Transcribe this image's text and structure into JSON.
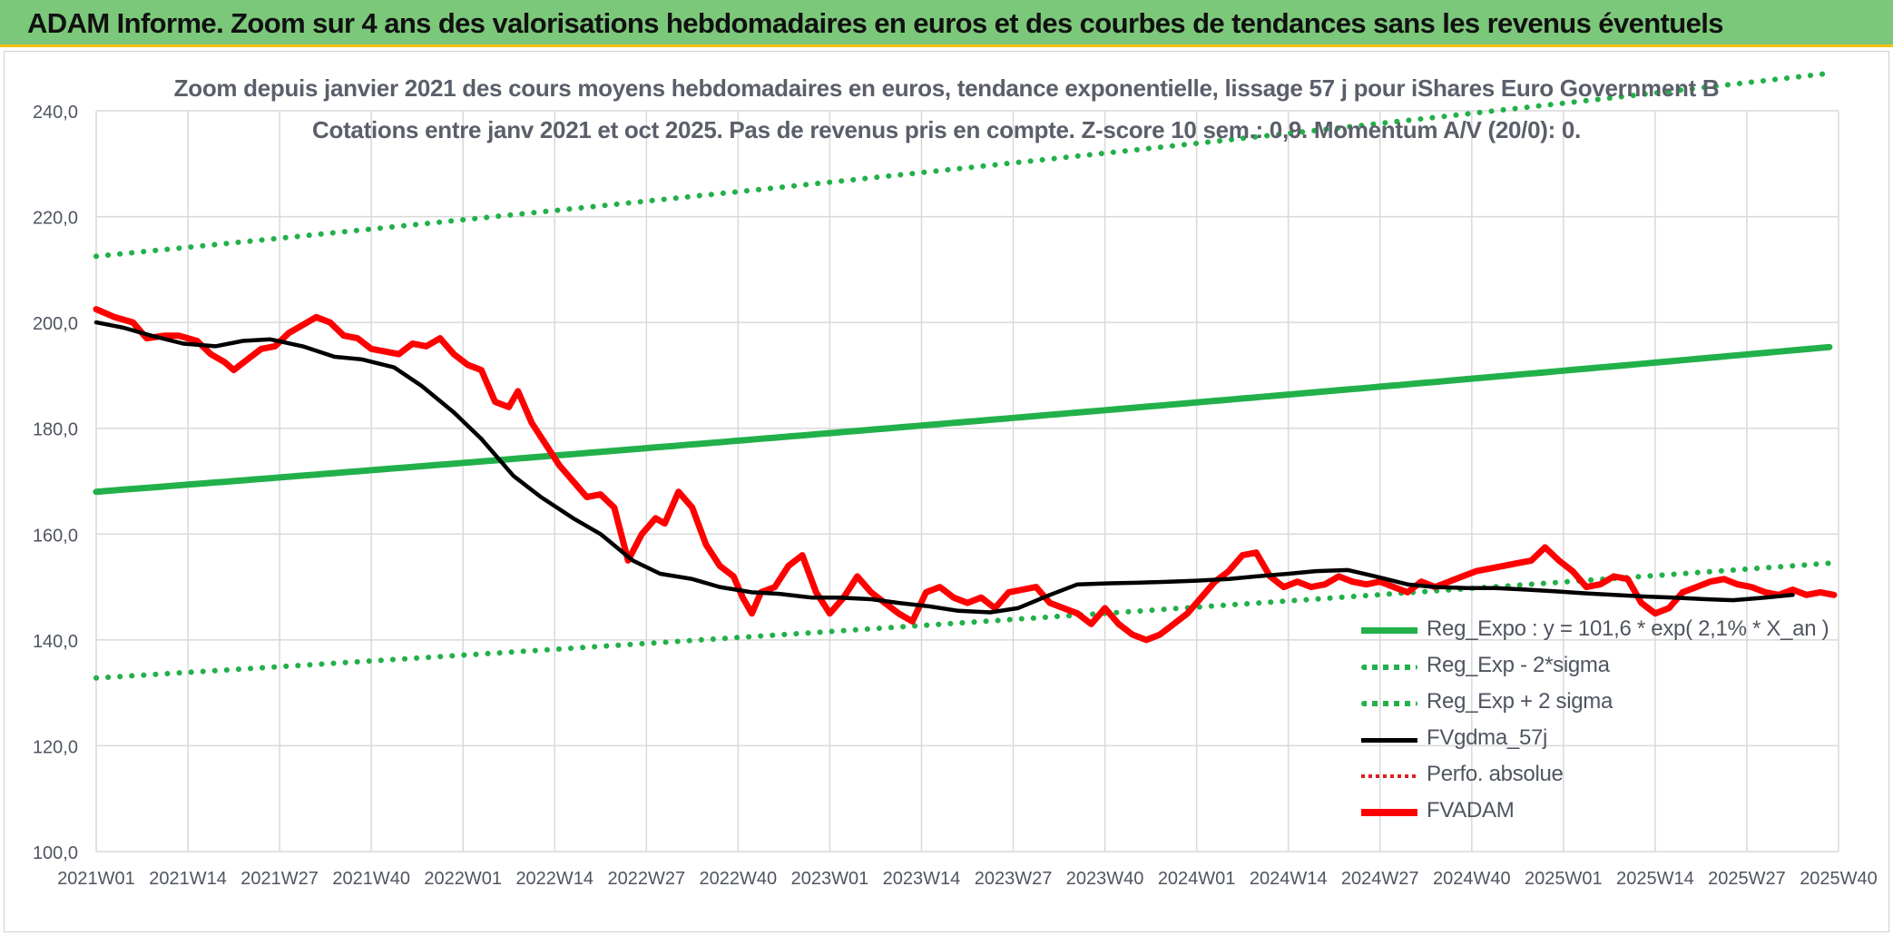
{
  "header": {
    "title": "ADAM Informe. Zoom sur 4 ans des valorisations hebdomadaires en euros et des courbes de tendances sans les revenus éventuels"
  },
  "chart_data": {
    "type": "line",
    "title_line1": "Zoom depuis janvier 2021 des cours moyens hebdomadaires en euros, tendance exponentielle, lissage 57 j pour iShares Euro Government B",
    "title_line2": "Cotations entre janv 2021 et oct 2025. Pas de revenus pris en compte. Z-score 10 sem.: 0,9. Momentum A/V (20/0): 0.",
    "xlabel": "",
    "ylabel": "",
    "ylim": [
      100,
      240
    ],
    "yticks": [
      "100,0",
      "120,0",
      "140,0",
      "160,0",
      "180,0",
      "200,0",
      "220,0",
      "240,0"
    ],
    "x_ticks": [
      "2021W01",
      "2021W14",
      "2021W27",
      "2021W40",
      "2022W01",
      "2022W14",
      "2022W27",
      "2022W40",
      "2023W01",
      "2023W14",
      "2023W27",
      "2023W40",
      "2024W01",
      "2024W14",
      "2024W27",
      "2024W40",
      "2025W01",
      "2025W14",
      "2025W27",
      "2025W40"
    ],
    "grid": true,
    "legend_position": "bottom-right",
    "colors": {
      "green": "#22b04a",
      "red": "#ff0000",
      "black": "#000000",
      "dotted_red": "#e02020"
    },
    "legend": [
      {
        "label": "Reg_Expo : y = 101,6 * exp( 2,1% *  X_an )",
        "style": "green-solid"
      },
      {
        "label": "Reg_Exp - 2*sigma",
        "style": "green-dotted"
      },
      {
        "label": "Reg_Exp + 2 sigma",
        "style": "green-dotted"
      },
      {
        "label": "FVgdma_57j",
        "style": "black-solid"
      },
      {
        "label": "Perfo. absolue",
        "style": "red-dotted"
      },
      {
        "label": "FVADAM",
        "style": "red-solid"
      }
    ],
    "series": [
      {
        "name": "Reg_Expo : y = 101,6 * exp( 2,1% *  X_an )",
        "key": "reg",
        "points": [
          [
            0,
            168
          ],
          [
            247,
            185.4
          ]
        ]
      },
      {
        "name": "Reg_Exp - 2*sigma",
        "key": "low",
        "points": [
          [
            0,
            132.8
          ],
          [
            247,
            146.6
          ]
        ]
      },
      {
        "name": "Reg_Exp + 2 sigma",
        "key": "high",
        "points": [
          [
            0,
            212.5
          ],
          [
            247,
            234.5
          ]
        ]
      },
      {
        "name": "FVgdma_57j",
        "key": "fv57",
        "points": [
          [
            0,
            200
          ],
          [
            6,
            199
          ],
          [
            12,
            197.5
          ],
          [
            19,
            196
          ],
          [
            26,
            195.5
          ],
          [
            32,
            196.5
          ],
          [
            38,
            196.8
          ],
          [
            45,
            195.5
          ],
          [
            52,
            193.5
          ],
          [
            58,
            193
          ],
          [
            65,
            191.5
          ],
          [
            71,
            188
          ],
          [
            78,
            183
          ],
          [
            84,
            178
          ],
          [
            91,
            171
          ],
          [
            97,
            167
          ],
          [
            104,
            163
          ],
          [
            110,
            160
          ],
          [
            117,
            155
          ],
          [
            123,
            152.5
          ],
          [
            130,
            151.5
          ],
          [
            136,
            150
          ],
          [
            143,
            149
          ],
          [
            149,
            148.7
          ],
          [
            156,
            148
          ],
          [
            162,
            148
          ],
          [
            169,
            147.7
          ],
          [
            175,
            147
          ],
          [
            182,
            146.3
          ],
          [
            188,
            145.5
          ],
          [
            195,
            145.2
          ],
          [
            201,
            146
          ],
          [
            208,
            148.5
          ],
          [
            214,
            150.5
          ],
          [
            221,
            150.7
          ],
          [
            227,
            150.8
          ],
          [
            234,
            151
          ],
          [
            240,
            151.2
          ],
          [
            247,
            151.5
          ],
          [
            253,
            152
          ],
          [
            260,
            152.5
          ],
          [
            266,
            153
          ],
          [
            273,
            153.2
          ],
          [
            279,
            152
          ],
          [
            286,
            150.5
          ],
          [
            292,
            150
          ],
          [
            299,
            149.8
          ],
          [
            305,
            149.8
          ],
          [
            312,
            149.5
          ],
          [
            318,
            149.2
          ],
          [
            325,
            148.8
          ],
          [
            331,
            148.5
          ],
          [
            338,
            148.2
          ],
          [
            344,
            148
          ],
          [
            351,
            147.7
          ],
          [
            357,
            147.5
          ],
          [
            364,
            148
          ],
          [
            370,
            148.5
          ]
        ]
      },
      {
        "name": "FVADAM",
        "key": "fvadam",
        "points": [
          [
            0,
            202.5
          ],
          [
            4,
            201
          ],
          [
            8,
            200
          ],
          [
            11,
            197
          ],
          [
            15,
            197.5
          ],
          [
            18,
            197.5
          ],
          [
            22,
            196.5
          ],
          [
            25,
            194
          ],
          [
            28,
            192.5
          ],
          [
            30,
            191
          ],
          [
            33,
            193
          ],
          [
            36,
            195
          ],
          [
            39,
            195.5
          ],
          [
            42,
            198
          ],
          [
            45,
            199.5
          ],
          [
            48,
            201
          ],
          [
            51,
            200
          ],
          [
            54,
            197.5
          ],
          [
            57,
            197
          ],
          [
            60,
            195
          ],
          [
            63,
            194.5
          ],
          [
            66,
            194
          ],
          [
            69,
            196
          ],
          [
            72,
            195.5
          ],
          [
            75,
            197
          ],
          [
            78,
            194
          ],
          [
            81,
            192
          ],
          [
            84,
            191
          ],
          [
            87,
            185
          ],
          [
            90,
            184
          ],
          [
            92,
            187
          ],
          [
            95,
            181
          ],
          [
            98,
            177
          ],
          [
            101,
            173
          ],
          [
            104,
            170
          ],
          [
            107,
            167
          ],
          [
            110,
            167.5
          ],
          [
            113,
            165
          ],
          [
            116,
            155
          ],
          [
            119,
            160
          ],
          [
            122,
            163
          ],
          [
            124,
            162
          ],
          [
            127,
            168
          ],
          [
            130,
            165
          ],
          [
            133,
            158
          ],
          [
            136,
            154
          ],
          [
            139,
            152
          ],
          [
            141,
            148
          ],
          [
            143,
            145
          ],
          [
            145,
            149
          ],
          [
            148,
            150
          ],
          [
            151,
            154
          ],
          [
            154,
            156
          ],
          [
            157,
            149
          ],
          [
            160,
            145
          ],
          [
            163,
            148
          ],
          [
            166,
            152
          ],
          [
            169,
            149
          ],
          [
            172,
            147
          ],
          [
            175,
            145
          ],
          [
            178,
            143.5
          ],
          [
            181,
            149
          ],
          [
            184,
            150
          ],
          [
            187,
            148
          ],
          [
            190,
            147
          ],
          [
            193,
            148
          ],
          [
            196,
            146
          ],
          [
            199,
            149
          ],
          [
            202,
            149.5
          ],
          [
            205,
            150
          ],
          [
            208,
            147
          ],
          [
            211,
            146
          ],
          [
            214,
            145
          ],
          [
            217,
            143
          ],
          [
            220,
            146
          ],
          [
            223,
            143
          ],
          [
            226,
            141
          ],
          [
            229,
            140
          ],
          [
            232,
            141
          ],
          [
            235,
            143
          ],
          [
            238,
            145
          ],
          [
            241,
            148
          ],
          [
            244,
            151
          ],
          [
            247,
            153
          ],
          [
            250,
            156
          ],
          [
            253,
            156.5
          ],
          [
            256,
            152
          ],
          [
            259,
            150
          ],
          [
            262,
            151
          ],
          [
            265,
            150
          ],
          [
            268,
            150.5
          ],
          [
            271,
            152
          ],
          [
            274,
            151
          ],
          [
            277,
            150.5
          ],
          [
            280,
            151
          ],
          [
            283,
            150
          ],
          [
            286,
            149
          ],
          [
            289,
            151
          ],
          [
            292,
            150
          ],
          [
            295,
            151
          ],
          [
            298,
            152
          ],
          [
            301,
            153
          ],
          [
            304,
            153.5
          ],
          [
            307,
            154
          ],
          [
            310,
            154.5
          ],
          [
            313,
            155
          ],
          [
            316,
            157.5
          ],
          [
            319,
            155
          ],
          [
            322,
            153
          ],
          [
            325,
            150
          ],
          [
            328,
            150.5
          ],
          [
            331,
            152
          ],
          [
            334,
            151.5
          ],
          [
            337,
            147
          ],
          [
            340,
            145
          ],
          [
            343,
            146
          ],
          [
            346,
            149
          ],
          [
            349,
            150
          ],
          [
            352,
            151
          ],
          [
            355,
            151.5
          ],
          [
            358,
            150.5
          ],
          [
            361,
            150
          ],
          [
            364,
            149
          ],
          [
            367,
            148.5
          ],
          [
            370,
            149.5
          ],
          [
            373,
            148.5
          ],
          [
            376,
            149
          ],
          [
            379,
            148.5
          ]
        ]
      }
    ]
  }
}
